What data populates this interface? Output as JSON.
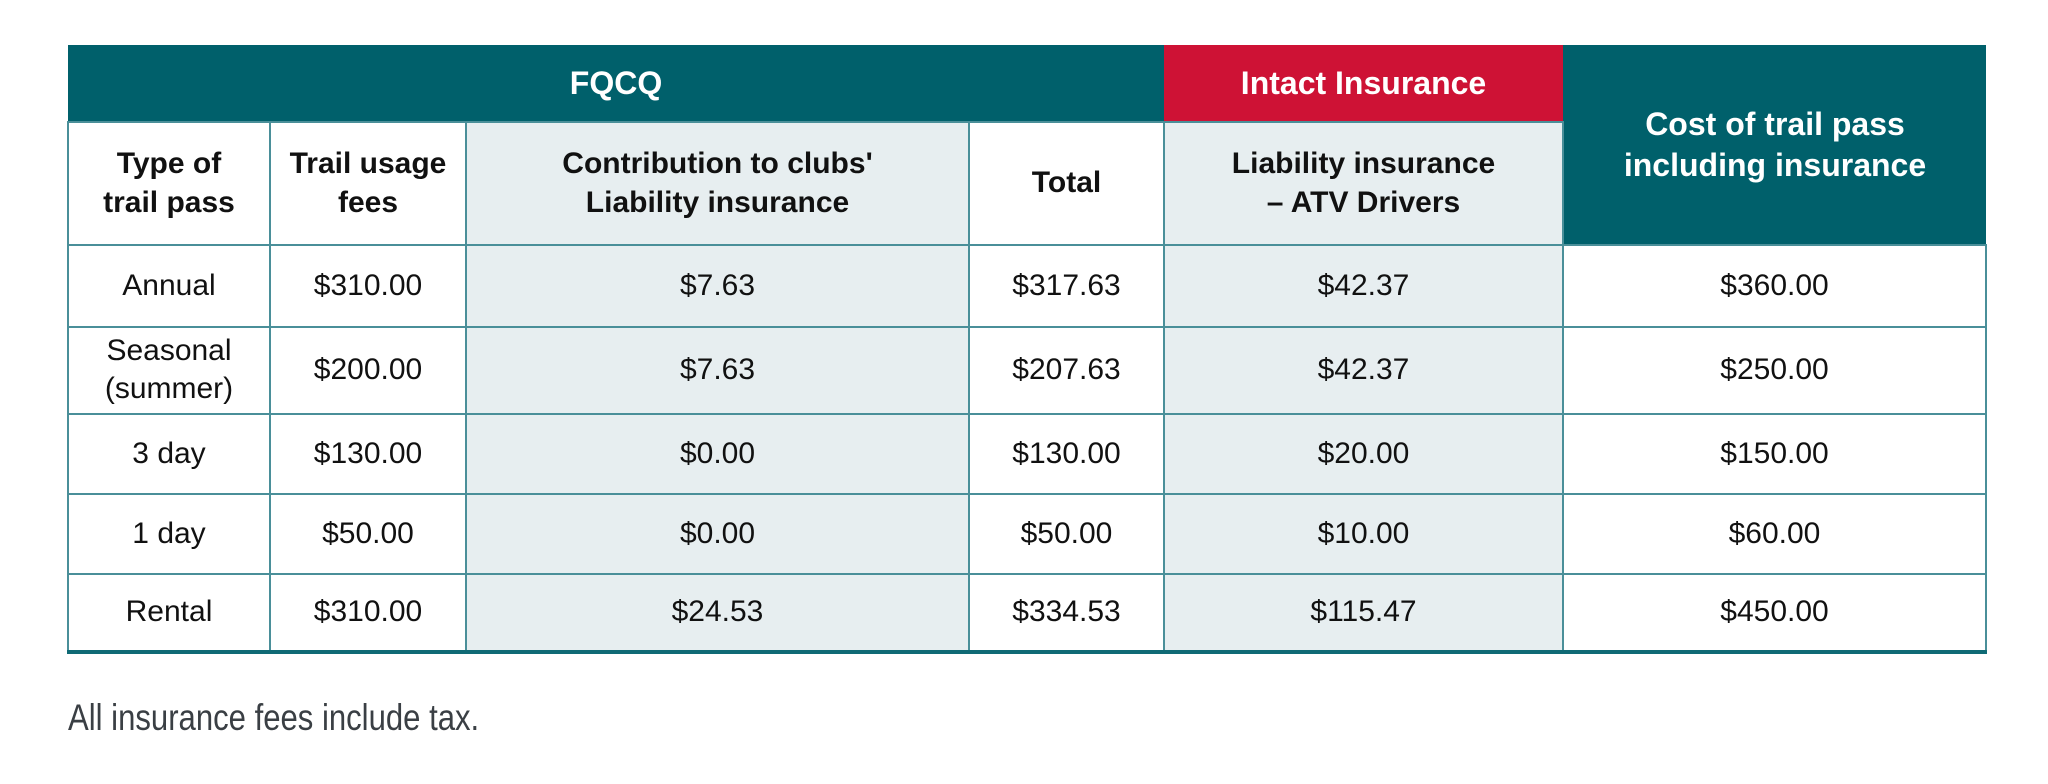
{
  "colors": {
    "teal_header": "#00606b",
    "red_header": "#ce1235",
    "shaded_cell": "#e7eef0",
    "grid_border": "#4a8f99",
    "bottom_border": "#0f6a75",
    "body_text": "#111111",
    "header_text": "#ffffff",
    "footnote_text": "#3a3f44"
  },
  "table": {
    "group_headers": {
      "fqcq": "FQCQ",
      "intact": "Intact Insurance",
      "cost": "Cost of trail pass\nincluding insurance"
    },
    "column_headers": {
      "type": "Type of\ntrail pass",
      "usage": "Trail usage\nfees",
      "contribution": "Contribution to clubs'\nLiability insurance",
      "total": "Total",
      "liability": "Liability insurance\n– ATV Drivers"
    },
    "rows": [
      {
        "cells": [
          "Annual",
          "$310.00",
          "$7.63",
          "$317.63",
          "$42.37",
          "$360.00"
        ]
      },
      {
        "cells": [
          "Seasonal\n(summer)",
          "$200.00",
          "$7.63",
          "$207.63",
          "$42.37",
          "$250.00"
        ]
      },
      {
        "cells": [
          "3 day",
          "$130.00",
          "$0.00",
          "$130.00",
          "$20.00",
          "$150.00"
        ]
      },
      {
        "cells": [
          "1 day",
          "$50.00",
          "$0.00",
          "$50.00",
          "$10.00",
          "$60.00"
        ]
      },
      {
        "cells": [
          "Rental",
          "$310.00",
          "$24.53",
          "$334.53",
          "$115.47",
          "$450.00"
        ]
      }
    ]
  },
  "footnote": "All insurance fees include tax."
}
